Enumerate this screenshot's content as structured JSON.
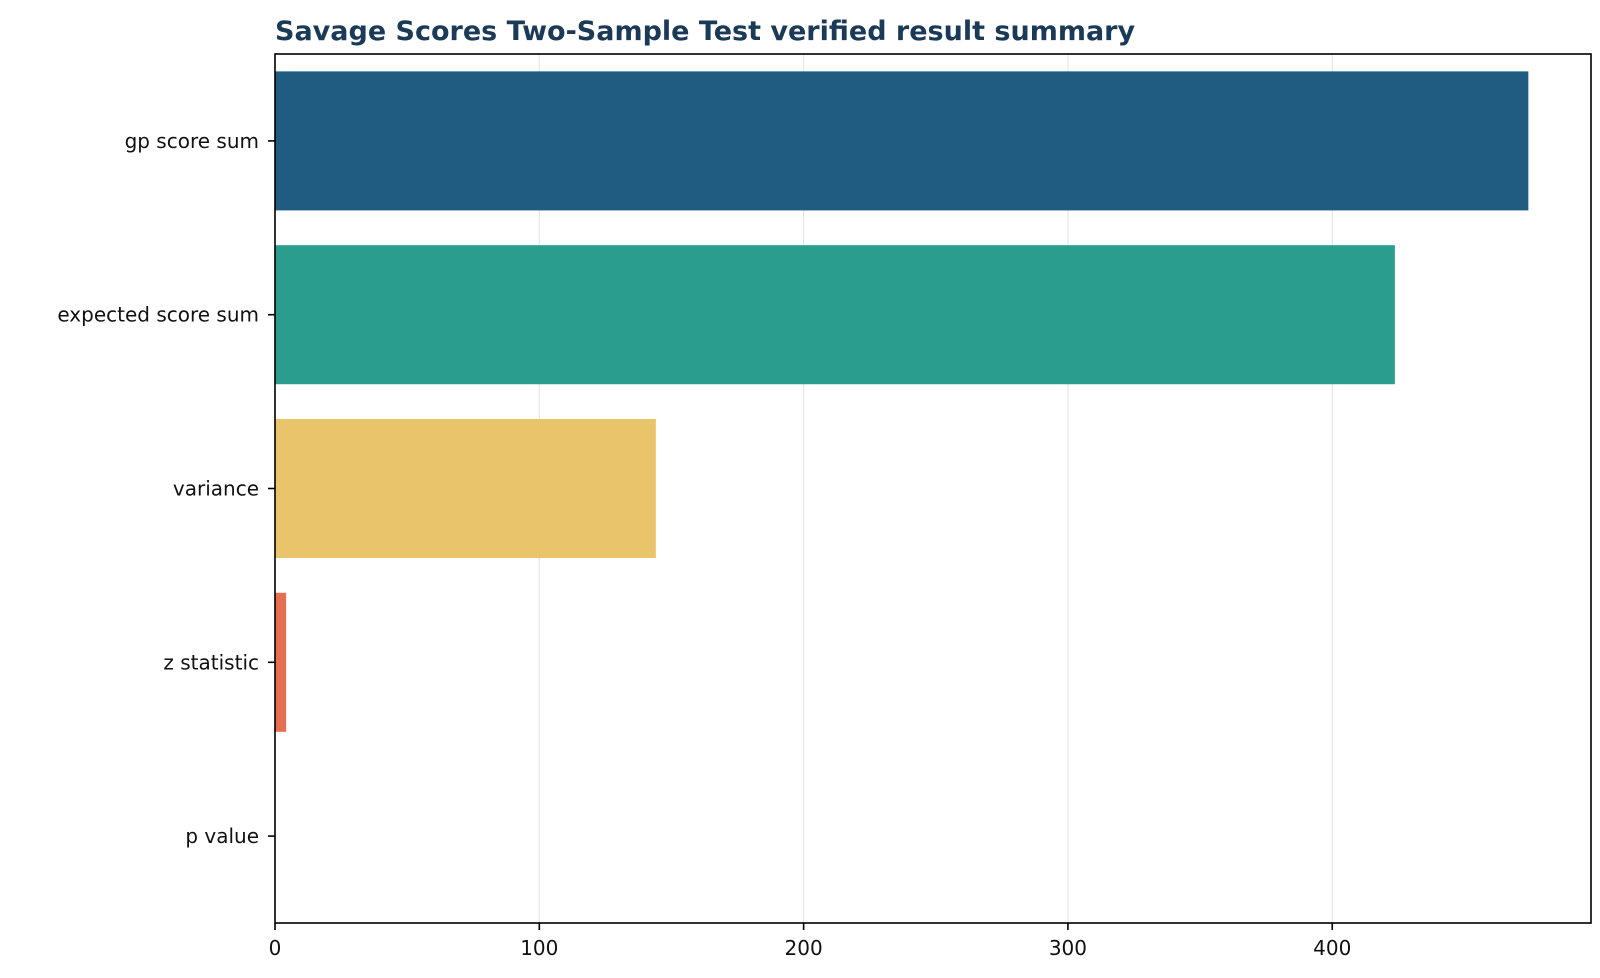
{
  "chart_data": {
    "type": "bar",
    "orientation": "horizontal",
    "title": "Savage Scores Two-Sample Test verified result summary",
    "xlabel": "",
    "ylabel": "",
    "categories": [
      "gp score sum",
      "expected score sum",
      "variance",
      "z statistic",
      "p value"
    ],
    "values": [
      474.2,
      423.7,
      144.1,
      4.2,
      2.15e-05
    ],
    "colors": [
      "#205c82",
      "#2a9d8f",
      "#e9c46a",
      "#e76f51",
      "#264653"
    ],
    "xlim": [
      0,
      497.9
    ],
    "xticks": [
      0,
      100,
      200,
      300,
      400
    ],
    "grid": true,
    "title_color": "#1b3a57"
  }
}
